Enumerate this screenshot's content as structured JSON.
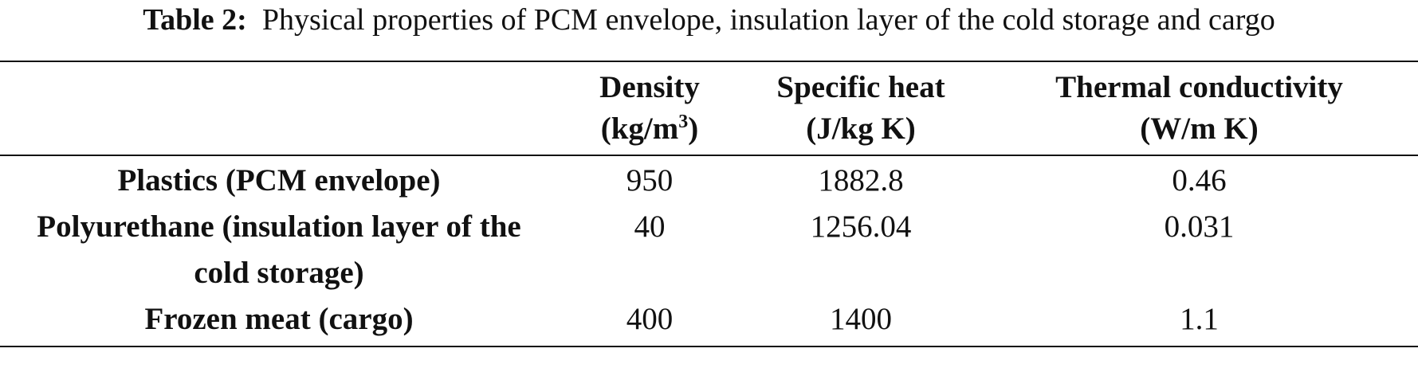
{
  "caption": {
    "label": "Table 2:",
    "text": "Physical properties of PCM envelope, insulation layer of the cold storage and cargo"
  },
  "table": {
    "headers": [
      {
        "line1": "Density",
        "line2_pre": "(kg/m",
        "line2_sup": "3",
        "line2_post": ")"
      },
      {
        "line1": "Specific heat",
        "line2_pre": "(J/kg K)",
        "line2_sup": "",
        "line2_post": ""
      },
      {
        "line1": "Thermal conductivity",
        "line2_pre": "(W/m K)",
        "line2_sup": "",
        "line2_post": ""
      }
    ],
    "rows": [
      {
        "label": "Plastics (PCM envelope)",
        "density": "950",
        "specific_heat": "1882.8",
        "conductivity": "0.46"
      },
      {
        "label": "Polyurethane (insulation layer of the cold storage)",
        "density": "40",
        "specific_heat": "1256.04",
        "conductivity": "0.031"
      },
      {
        "label": "Frozen meat (cargo)",
        "density": "400",
        "specific_heat": "1400",
        "conductivity": "1.1"
      }
    ]
  }
}
